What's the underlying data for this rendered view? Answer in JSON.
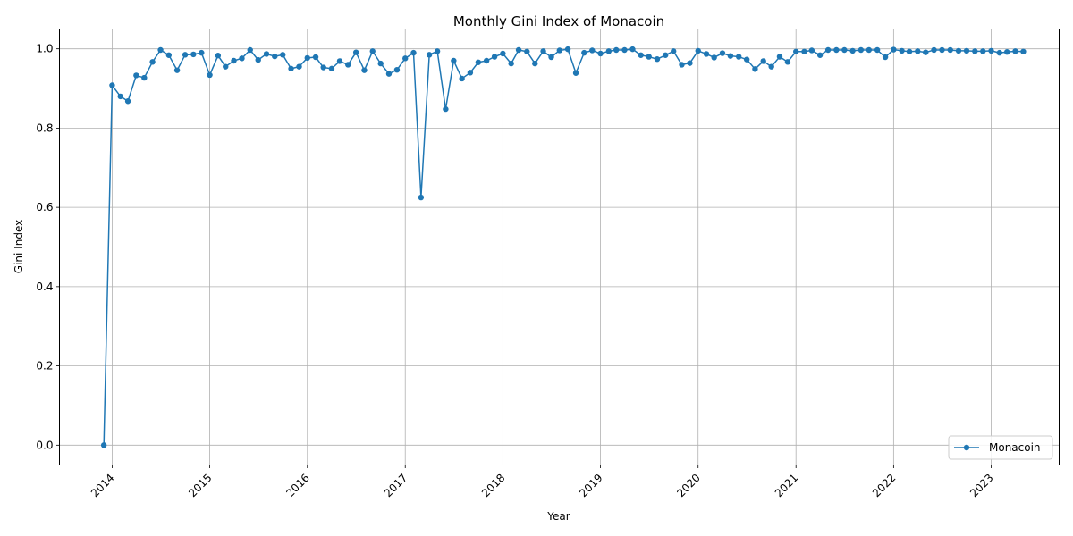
{
  "chart_data": {
    "type": "line",
    "title": "Monthly Gini Index of Monacoin",
    "xlabel": "Year",
    "ylabel": "Gini Index",
    "xlim": [
      "2013-06-18",
      "2023-09-12"
    ],
    "ylim": [
      -0.05,
      1.05
    ],
    "x_ticks": [
      "2014",
      "2015",
      "2016",
      "2017",
      "2018",
      "2019",
      "2020",
      "2021",
      "2022",
      "2023"
    ],
    "y_ticks": [
      "0.0",
      "0.2",
      "0.4",
      "0.6",
      "0.8",
      "1.0"
    ],
    "grid": true,
    "legend_position": "bottom-right",
    "series": [
      {
        "name": "Monacoin",
        "color": "#1f77b4",
        "marker": "circle",
        "x": [
          "2013-12",
          "2014-01",
          "2014-02",
          "2014-03",
          "2014-04",
          "2014-05",
          "2014-06",
          "2014-07",
          "2014-08",
          "2014-09",
          "2014-10",
          "2014-11",
          "2014-12",
          "2015-01",
          "2015-02",
          "2015-03",
          "2015-04",
          "2015-05",
          "2015-06",
          "2015-07",
          "2015-08",
          "2015-09",
          "2015-10",
          "2015-11",
          "2015-12",
          "2016-01",
          "2016-02",
          "2016-03",
          "2016-04",
          "2016-05",
          "2016-06",
          "2016-07",
          "2016-08",
          "2016-09",
          "2016-10",
          "2016-11",
          "2016-12",
          "2017-01",
          "2017-02",
          "2017-03",
          "2017-04",
          "2017-05",
          "2017-06",
          "2017-07",
          "2017-08",
          "2017-09",
          "2017-10",
          "2017-11",
          "2017-12",
          "2018-01",
          "2018-02",
          "2018-03",
          "2018-04",
          "2018-05",
          "2018-06",
          "2018-07",
          "2018-08",
          "2018-09",
          "2018-10",
          "2018-11",
          "2018-12",
          "2019-01",
          "2019-02",
          "2019-03",
          "2019-04",
          "2019-05",
          "2019-06",
          "2019-07",
          "2019-08",
          "2019-09",
          "2019-10",
          "2019-11",
          "2019-12",
          "2020-01",
          "2020-02",
          "2020-03",
          "2020-04",
          "2020-05",
          "2020-06",
          "2020-07",
          "2020-08",
          "2020-09",
          "2020-10",
          "2020-11",
          "2020-12",
          "2021-01",
          "2021-02",
          "2021-03",
          "2021-04",
          "2021-05",
          "2021-06",
          "2021-07",
          "2021-08",
          "2021-09",
          "2021-10",
          "2021-11",
          "2021-12",
          "2022-01",
          "2022-02",
          "2022-03",
          "2022-04",
          "2022-05",
          "2022-06",
          "2022-07",
          "2022-08",
          "2022-09",
          "2022-10",
          "2022-11",
          "2022-12",
          "2023-01",
          "2023-02",
          "2023-03",
          "2023-04",
          "2023-05"
        ],
        "values": [
          0.0,
          0.908,
          0.88,
          0.868,
          0.933,
          0.927,
          0.967,
          0.997,
          0.984,
          0.946,
          0.985,
          0.986,
          0.99,
          0.934,
          0.983,
          0.955,
          0.97,
          0.976,
          0.997,
          0.972,
          0.987,
          0.981,
          0.985,
          0.95,
          0.955,
          0.977,
          0.979,
          0.953,
          0.95,
          0.969,
          0.96,
          0.991,
          0.946,
          0.994,
          0.963,
          0.937,
          0.947,
          0.976,
          0.99,
          0.625,
          0.985,
          0.994,
          0.848,
          0.97,
          0.925,
          0.94,
          0.966,
          0.97,
          0.98,
          0.988,
          0.963,
          0.997,
          0.993,
          0.963,
          0.994,
          0.979,
          0.996,
          0.999,
          0.939,
          0.99,
          0.996,
          0.988,
          0.994,
          0.997,
          0.997,
          0.999,
          0.984,
          0.98,
          0.974,
          0.984,
          0.994,
          0.96,
          0.964,
          0.995,
          0.987,
          0.978,
          0.989,
          0.982,
          0.98,
          0.973,
          0.949,
          0.969,
          0.955,
          0.98,
          0.967,
          0.993,
          0.993,
          0.996,
          0.984,
          0.997,
          0.997,
          0.997,
          0.995,
          0.997,
          0.997,
          0.997,
          0.979,
          0.998,
          0.995,
          0.993,
          0.994,
          0.991,
          0.997,
          0.997,
          0.997,
          0.995,
          0.995,
          0.994,
          0.994,
          0.995,
          0.99,
          0.992,
          0.994,
          0.993
        ]
      }
    ]
  }
}
